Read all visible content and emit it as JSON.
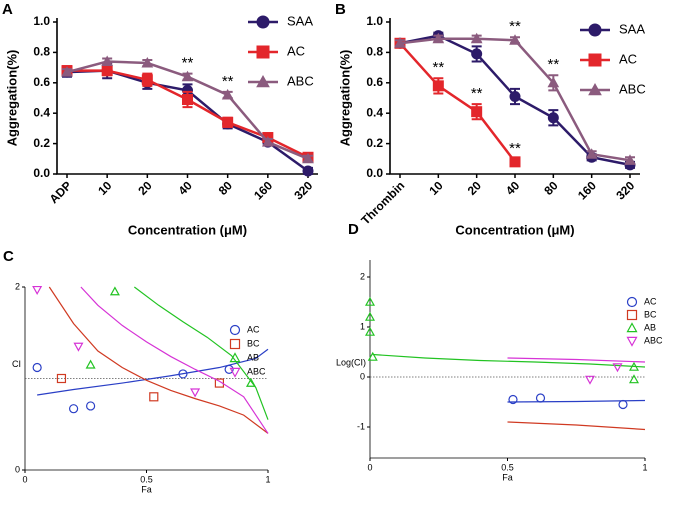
{
  "chart_data": [
    {
      "type": "line",
      "label": "A",
      "ylabel": "Aggregation(%)",
      "xlabel": "Concentration (μM)",
      "categories": [
        "ADP",
        "10",
        "20",
        "40",
        "80",
        "160",
        "320"
      ],
      "ylim": [
        0,
        1
      ],
      "yticks": [
        {
          "value": 0,
          "label": "0.0"
        },
        0.2,
        0.4,
        0.6,
        0.8,
        {
          "value": 1,
          "label": "1.0"
        }
      ],
      "series": [
        {
          "name": "SAA",
          "color": "#2d1b69",
          "marker": "circle",
          "values": [
            0.67,
            0.68,
            0.6,
            0.55,
            0.33,
            0.21,
            0.02
          ],
          "errors": [
            0.03,
            0.05,
            0.04,
            0.04,
            0.03,
            0.02,
            0.02
          ]
        },
        {
          "name": "AC",
          "color": "#e3262b",
          "marker": "square",
          "values": [
            0.68,
            0.68,
            0.62,
            0.49,
            0.34,
            0.24,
            0.11
          ],
          "errors": [
            0.03,
            0.03,
            0.04,
            0.05,
            0.03,
            0.02,
            0.02
          ]
        },
        {
          "name": "ABC",
          "color": "#8b5b7e",
          "marker": "triangle",
          "values": [
            0.67,
            0.74,
            0.73,
            0.64,
            0.52,
            0.21,
            0.1
          ],
          "errors": [
            0.02,
            0.02,
            0.02,
            0.02,
            0.02,
            0.02,
            0.02
          ]
        }
      ],
      "annotations": [
        {
          "text": "**",
          "x": "40",
          "series": "ABC"
        },
        {
          "text": "**",
          "x": "80",
          "series": "ABC"
        }
      ]
    },
    {
      "type": "line",
      "label": "B",
      "ylabel": "Aggregation(%)",
      "xlabel": "Concentration (μM)",
      "categories": [
        "Thrombin",
        "10",
        "20",
        "40",
        "80",
        "160",
        "320"
      ],
      "ylim": [
        0,
        1
      ],
      "yticks": [
        {
          "value": 0,
          "label": "0.0"
        },
        0.2,
        0.4,
        0.6,
        0.8,
        {
          "value": 1,
          "label": "1.0"
        }
      ],
      "series": [
        {
          "name": "SAA",
          "color": "#2d1b69",
          "marker": "circle",
          "values": [
            0.86,
            0.91,
            0.79,
            0.51,
            0.37,
            0.11,
            0.06
          ],
          "errors": [
            0.02,
            0.02,
            0.05,
            0.05,
            0.05,
            0.02,
            0.02
          ]
        },
        {
          "name": "AC",
          "color": "#e3262b",
          "marker": "square",
          "values": [
            0.86,
            0.58,
            0.41,
            0.08,
            null,
            null,
            null
          ],
          "errors": [
            0.02,
            0.05,
            0.05,
            0.02,
            null,
            null,
            null
          ]
        },
        {
          "name": "ABC",
          "color": "#8b5b7e",
          "marker": "triangle",
          "values": [
            0.86,
            0.89,
            0.89,
            0.88,
            0.6,
            0.13,
            0.09
          ],
          "errors": [
            0.02,
            0.02,
            0.02,
            0.02,
            0.05,
            0.02,
            0.02
          ]
        }
      ],
      "annotations": [
        {
          "text": "**",
          "x": "10",
          "series": "AC"
        },
        {
          "text": "**",
          "x": "20",
          "series": "AC"
        },
        {
          "text": "**",
          "x": "40",
          "series": "AC"
        },
        {
          "text": "**",
          "x": "40",
          "series": "ABC"
        },
        {
          "text": "**",
          "x": "80",
          "series": "ABC"
        }
      ]
    },
    {
      "type": "scatter",
      "label": "C",
      "ylabel": "CI",
      "xlabel": "Fa",
      "xlim": [
        0,
        1
      ],
      "xticks": [
        0,
        0.5,
        1
      ],
      "ylim": [
        0,
        2
      ],
      "yticks": [
        0,
        2
      ],
      "reference_line": 1,
      "series": [
        {
          "name": "AC",
          "color": "#2a3fc6",
          "marker": "circle",
          "x": [
            0.05,
            0.2,
            0.27,
            0.65,
            0.84
          ],
          "values": [
            1.12,
            0.67,
            0.7,
            1.05,
            1.1
          ],
          "curve_x": [
            0.05,
            0.2,
            0.4,
            0.6,
            0.8,
            0.95,
            1
          ],
          "curve_values": [
            0.82,
            0.88,
            0.95,
            1.03,
            1.12,
            1.22,
            1.32
          ]
        },
        {
          "name": "BC",
          "color": "#d03a22",
          "marker": "square",
          "x": [
            0.15,
            0.53,
            0.8
          ],
          "values": [
            1.0,
            0.8,
            0.95
          ],
          "curve_x": [
            0.1,
            0.2,
            0.3,
            0.4,
            0.5,
            0.6,
            0.7,
            0.8,
            0.9,
            1
          ],
          "curve_values": [
            2.0,
            1.6,
            1.3,
            1.12,
            0.98,
            0.87,
            0.78,
            0.7,
            0.6,
            0.4
          ]
        },
        {
          "name": "AB",
          "color": "#22c322",
          "marker": "triangle",
          "x": [
            0.37,
            0.27,
            0.93
          ],
          "values": [
            1.95,
            1.15,
            0.95
          ],
          "curve_x": [
            0.45,
            0.55,
            0.65,
            0.75,
            0.85,
            0.95,
            1
          ],
          "curve_values": [
            2.0,
            1.8,
            1.62,
            1.45,
            1.25,
            0.9,
            0.55
          ]
        },
        {
          "name": "ABC",
          "color": "#d633d6",
          "marker": "triangle-down",
          "x": [
            0.05,
            0.22,
            0.7
          ],
          "values": [
            1.97,
            1.35,
            0.85
          ],
          "curve_x": [
            0.23,
            0.3,
            0.4,
            0.5,
            0.6,
            0.7,
            0.8,
            0.9,
            1
          ],
          "curve_values": [
            2.0,
            1.8,
            1.58,
            1.4,
            1.24,
            1.1,
            0.97,
            0.8,
            0.4
          ]
        }
      ]
    },
    {
      "type": "scatter",
      "label": "D",
      "ylabel": "Log(CI)",
      "xlabel": "Fa",
      "xlim": [
        0,
        1
      ],
      "xticks": [
        0,
        0.5,
        1
      ],
      "ylim": [
        -1.62,
        2.34
      ],
      "yticks": [
        -1,
        0,
        1,
        2
      ],
      "reference_line": 0,
      "series": [
        {
          "name": "AC",
          "color": "#2a3fc6",
          "marker": "circle",
          "x": [
            0.52,
            0.62,
            0.92
          ],
          "values": [
            -0.45,
            -0.42,
            -0.55
          ],
          "curve_x": [
            0.5,
            0.75,
            1
          ],
          "curve_values": [
            -0.5,
            -0.49,
            -0.47
          ]
        },
        {
          "name": "BC",
          "color": "#d03a22",
          "marker": "square",
          "x": [],
          "values": [],
          "curve_x": [
            0.5,
            0.75,
            1
          ],
          "curve_values": [
            -0.9,
            -0.96,
            -1.05
          ]
        },
        {
          "name": "AB",
          "color": "#22c322",
          "marker": "triangle",
          "x": [
            0,
            0,
            0,
            0.01,
            0.96,
            0.96
          ],
          "values": [
            1.5,
            1.2,
            0.9,
            0.4,
            0.2,
            -0.05
          ],
          "curve_x": [
            0.01,
            0.2,
            0.4,
            0.6,
            0.8,
            1
          ],
          "curve_values": [
            0.45,
            0.38,
            0.33,
            0.3,
            0.26,
            0.2
          ]
        },
        {
          "name": "ABC",
          "color": "#d633d6",
          "marker": "triangle-down",
          "x": [
            0.8,
            0.9
          ],
          "values": [
            -0.05,
            0.2
          ],
          "curve_x": [
            0.5,
            0.75,
            1
          ],
          "curve_values": [
            0.38,
            0.35,
            0.3
          ]
        }
      ]
    }
  ]
}
